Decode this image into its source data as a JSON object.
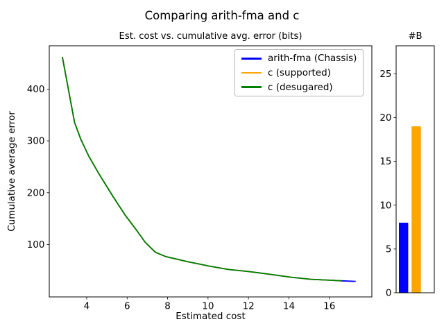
{
  "figure": {
    "title": "Comparing arith-fma and c",
    "background": "#ffffff",
    "text_color": "#000000"
  },
  "chart_data": [
    {
      "type": "line",
      "title": "Est. cost vs. cumulative avg. error (bits)",
      "xlabel": "Estimated cost",
      "ylabel": "Cumulative average error",
      "xlim": [
        2.15,
        18.1
      ],
      "ylim": [
        -1,
        483.5
      ],
      "xticks": [
        4,
        6,
        8,
        10,
        12,
        14,
        16
      ],
      "yticks": [
        100,
        200,
        300,
        400
      ],
      "grid": false,
      "legend_position": "upper right",
      "series": [
        {
          "name": "arith-fma (Chassis)",
          "color": "#0000ff",
          "points": [
            [
              2.8,
              462
            ],
            [
              3.4,
              336
            ],
            [
              3.7,
              304
            ],
            [
              4.1,
              271
            ],
            [
              4.6,
              237
            ],
            [
              5.3,
              193
            ],
            [
              5.9,
              157
            ],
            [
              6.5,
              126
            ],
            [
              6.9,
              104
            ],
            [
              7.4,
              85
            ],
            [
              7.9,
              77
            ],
            [
              9.0,
              67
            ],
            [
              10.0,
              59
            ],
            [
              11.0,
              52
            ],
            [
              12.0,
              48
            ],
            [
              13.0,
              43
            ],
            [
              14.1,
              37
            ],
            [
              15.1,
              33
            ],
            [
              16.2,
              31
            ],
            [
              16.6,
              30
            ],
            [
              17.3,
              29
            ]
          ]
        },
        {
          "name": "c (supported)",
          "color": "#ffa500",
          "points": [
            [
              2.8,
              462
            ],
            [
              3.4,
              336
            ],
            [
              3.7,
              304
            ],
            [
              4.1,
              271
            ],
            [
              4.6,
              237
            ],
            [
              5.3,
              193
            ],
            [
              5.9,
              157
            ],
            [
              6.5,
              126
            ],
            [
              6.9,
              104
            ],
            [
              7.4,
              85
            ],
            [
              7.9,
              77
            ],
            [
              9.0,
              67
            ],
            [
              10.0,
              59
            ],
            [
              11.0,
              52
            ],
            [
              12.0,
              48
            ],
            [
              13.0,
              43
            ],
            [
              14.1,
              37
            ],
            [
              15.1,
              33
            ],
            [
              16.2,
              31
            ],
            [
              16.6,
              30
            ]
          ]
        },
        {
          "name": "c (desugared)",
          "color": "#008000",
          "points": [
            [
              2.8,
              462
            ],
            [
              3.4,
              336
            ],
            [
              3.7,
              304
            ],
            [
              4.1,
              271
            ],
            [
              4.6,
              237
            ],
            [
              5.3,
              193
            ],
            [
              5.9,
              157
            ],
            [
              6.5,
              126
            ],
            [
              6.9,
              104
            ],
            [
              7.4,
              85
            ],
            [
              7.9,
              77
            ],
            [
              9.0,
              67
            ],
            [
              10.0,
              59
            ],
            [
              11.0,
              52
            ],
            [
              12.0,
              48
            ],
            [
              13.0,
              43
            ],
            [
              14.1,
              37
            ],
            [
              15.1,
              33
            ],
            [
              16.2,
              31
            ],
            [
              16.6,
              30
            ]
          ]
        }
      ]
    },
    {
      "type": "bar",
      "title": "#B",
      "ylim": [
        0,
        28.2
      ],
      "yticks": [
        0,
        5,
        10,
        15,
        20,
        25
      ],
      "grid": false,
      "bars": [
        {
          "name": "arith-fma (Chassis)",
          "color": "#0000ff",
          "value": 8
        },
        {
          "name": "c (supported)",
          "color": "#ffa500",
          "value": 19
        },
        {
          "name": "c (desugared)",
          "color": "#008000",
          "value": 0
        }
      ]
    }
  ]
}
